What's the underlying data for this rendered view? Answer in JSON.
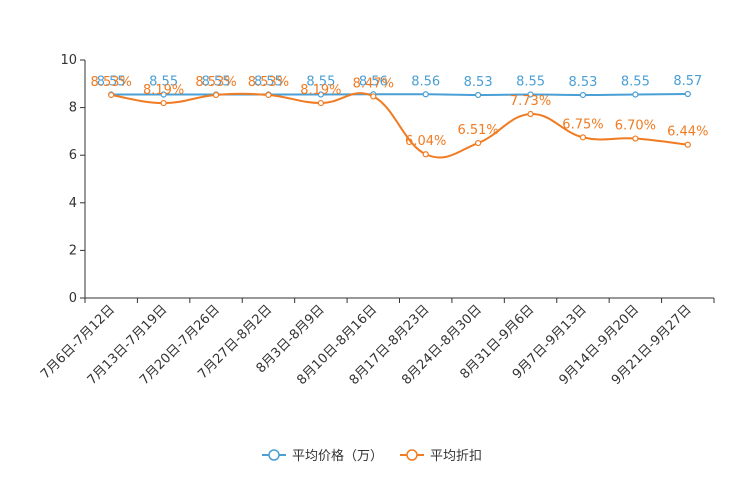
{
  "chart_data": {
    "type": "line",
    "title": "",
    "xlabel": "",
    "ylabel": "",
    "ylim": [
      0,
      10
    ],
    "yticks": [
      0,
      2,
      4,
      6,
      8,
      10
    ],
    "grid": false,
    "legend_position": "bottom-center",
    "categories": [
      "7月6日-7月12日",
      "7月13日-7月19日",
      "7月20日-7月26日",
      "7月27日-8月2日",
      "8月3日-8月9日",
      "8月10日-8月16日",
      "8月17日-8月23日",
      "8月24日-8月30日",
      "8月31日-9月6日",
      "9月7日-9月13日",
      "9月14日-9月20日",
      "9月21日-9月27日"
    ],
    "series": [
      {
        "name": "平均价格（万）",
        "color": "#4a9fd4",
        "values": [
          8.55,
          8.55,
          8.55,
          8.55,
          8.55,
          8.56,
          8.56,
          8.53,
          8.55,
          8.53,
          8.55,
          8.57
        ],
        "labels": [
          "8.55",
          "8.55",
          "8.55",
          "8.55",
          "8.55",
          "8.56",
          "8.56",
          "8.53",
          "8.55",
          "8.53",
          "8.55",
          "8.57"
        ]
      },
      {
        "name": "平均折扣",
        "color": "#f07b22",
        "values": [
          8.53,
          8.19,
          8.53,
          8.53,
          8.19,
          8.47,
          6.04,
          6.51,
          7.73,
          6.75,
          6.7,
          6.44
        ],
        "labels": [
          "8.53%",
          "8.19%",
          "8.53%",
          "8.53%",
          "8.19%",
          "8.47%",
          "6.04%",
          "6.51%",
          "7.73%",
          "6.75%",
          "6.70%",
          "6.44%"
        ]
      }
    ]
  }
}
